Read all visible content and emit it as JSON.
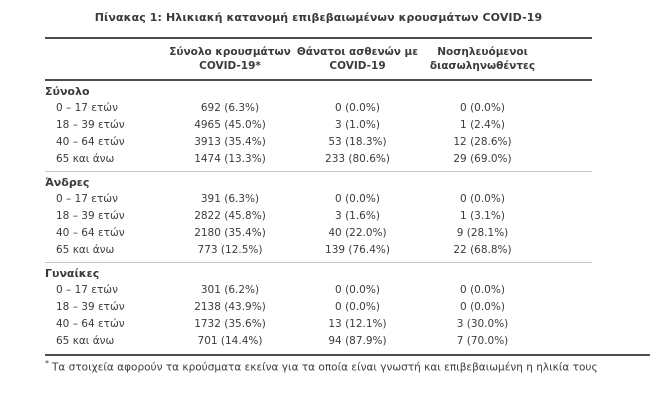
{
  "title": "Πίνακας 1: Ηλικιακή κατανομή επιβεβαιωμένων κρουσμάτων COVID-19",
  "table": {
    "columns": [
      "Σύνολο κρουσμάτων COVID-19*",
      "Θάνατοι ασθενών με COVID-19",
      "Νοσηλευόμενοι διασωληνωθέντες"
    ],
    "sections": [
      {
        "label": "Σύνολο",
        "rows": [
          {
            "label": "0 – 17 ετών",
            "cases": "692 (6.3%)",
            "deaths": "0 (0.0%)",
            "intubated": "0 (0.0%)"
          },
          {
            "label": "18 – 39 ετών",
            "cases": "4965 (45.0%)",
            "deaths": "3 (1.0%)",
            "intubated": "1 (2.4%)"
          },
          {
            "label": "40 – 64 ετών",
            "cases": "3913 (35.4%)",
            "deaths": "53 (18.3%)",
            "intubated": "12 (28.6%)"
          },
          {
            "label": "65 και άνω",
            "cases": "1474 (13.3%)",
            "deaths": "233 (80.6%)",
            "intubated": "29 (69.0%)"
          }
        ]
      },
      {
        "label": "Άνδρες",
        "rows": [
          {
            "label": "0 – 17 ετών",
            "cases": "391 (6.3%)",
            "deaths": "0 (0.0%)",
            "intubated": "0 (0.0%)"
          },
          {
            "label": "18 – 39 ετών",
            "cases": "2822 (45.8%)",
            "deaths": "3 (1.6%)",
            "intubated": "1 (3.1%)"
          },
          {
            "label": "40 – 64 ετών",
            "cases": "2180 (35.4%)",
            "deaths": "40 (22.0%)",
            "intubated": "9 (28.1%)"
          },
          {
            "label": "65 και άνω",
            "cases": "773 (12.5%)",
            "deaths": "139 (76.4%)",
            "intubated": "22 (68.8%)"
          }
        ]
      },
      {
        "label": "Γυναίκες",
        "rows": [
          {
            "label": "0 – 17 ετών",
            "cases": "301 (6.2%)",
            "deaths": "0 (0.0%)",
            "intubated": "0 (0.0%)"
          },
          {
            "label": "18 – 39 ετών",
            "cases": "2138 (43.9%)",
            "deaths": "0 (0.0%)",
            "intubated": "0 (0.0%)"
          },
          {
            "label": "40 – 64 ετών",
            "cases": "1732 (35.6%)",
            "deaths": "13 (12.1%)",
            "intubated": "3 (30.0%)"
          },
          {
            "label": "65 και άνω",
            "cases": "701 (14.4%)",
            "deaths": "94 (87.9%)",
            "intubated": "7 (70.0%)"
          }
        ]
      }
    ]
  },
  "footnote": {
    "marker": "*",
    "text": "Τα στοιχεία αφορούν τα κρούσματα εκείνα για τα οποία είναι γνωστή και επιβεβαιωμένη η ηλικία τους"
  }
}
